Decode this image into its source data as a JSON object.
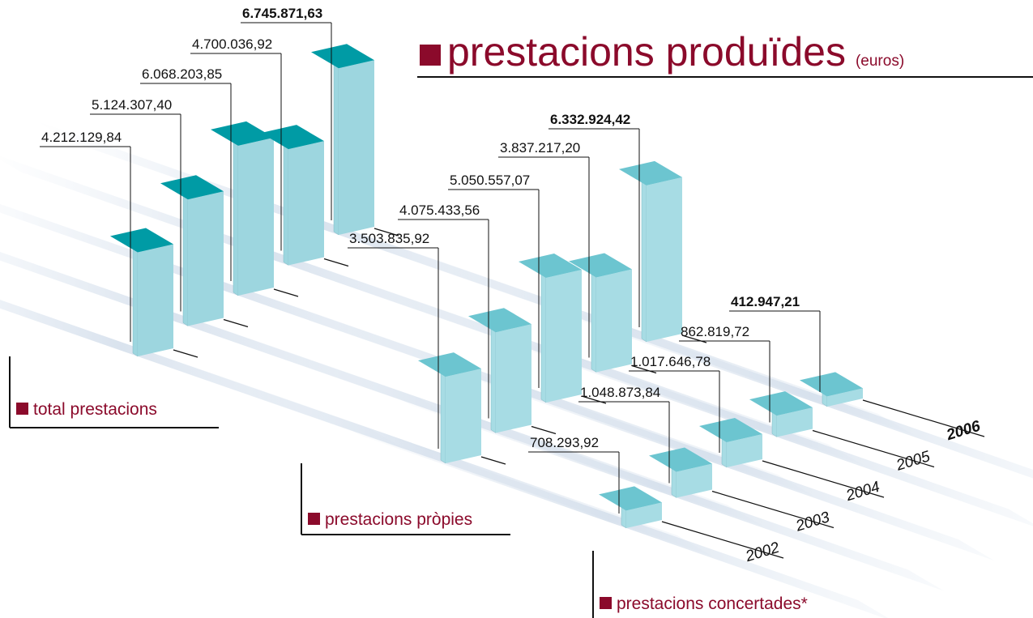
{
  "title": "prestacions produïdes",
  "unit": "(euros)",
  "categories": [
    "2002",
    "2003",
    "2004",
    "2005",
    "2006"
  ],
  "chart_data": [
    {
      "type": "bar",
      "title": "total prestacions",
      "color": "#009ba5",
      "face_color": "#9dd6df",
      "values": [
        4212129.84,
        5124307.4,
        6068203.85,
        4700036.92,
        6745871.63
      ],
      "value_labels": [
        "4.212.129,84",
        "5.124.307,40",
        "6.068.203,85",
        "4.700.036,92",
        "6.745.871,63"
      ]
    },
    {
      "type": "bar",
      "title": "prestacions pròpies",
      "color": "#6cc5d0",
      "face_color": "#a7dce4",
      "values": [
        3503835.92,
        4075433.56,
        5050557.07,
        3837217.2,
        6332924.42
      ],
      "value_labels": [
        "3.503.835,92",
        "4.075.433,56",
        "5.050.557,07",
        "3.837.217,20",
        "6.332.924,42"
      ]
    },
    {
      "type": "bar",
      "title": "prestacions concertades*",
      "color": "#6cc5d0",
      "face_color": "#a7dce4",
      "values": [
        708293.92,
        1048873.84,
        1017646.78,
        862819.72,
        412947.21
      ],
      "value_labels": [
        "708.293,92",
        "1.048.873,84",
        "1.017.646,78",
        "862.819,72",
        "412.947,21"
      ]
    }
  ]
}
